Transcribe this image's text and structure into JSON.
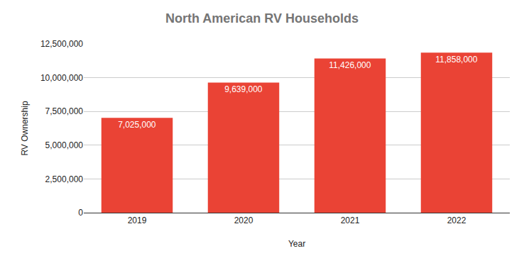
{
  "chart_data": {
    "type": "bar",
    "title": "North American RV Households",
    "x_label": "Year",
    "y_label": "RV Ownership",
    "categories": [
      "2019",
      "2020",
      "2021",
      "2022"
    ],
    "values": [
      7025000,
      9639000,
      11426000,
      11858000
    ],
    "value_labels": [
      "7,025,000",
      "9,639,000",
      "11,426,000",
      "11,858,000"
    ],
    "color": "#ea4335",
    "ylim": [
      0,
      12500000
    ],
    "yticks": [
      0,
      {
        "value": 2500000,
        "label": "2,500,000"
      },
      {
        "value": 5000000,
        "label": "5,000,000"
      },
      {
        "value": 7500000,
        "label": "7,500,000"
      },
      {
        "value": 10000000,
        "label": "10,000,000"
      },
      {
        "value": 12500000,
        "label": "12,500,000"
      }
    ],
    "grid": true,
    "data_labels": true
  }
}
